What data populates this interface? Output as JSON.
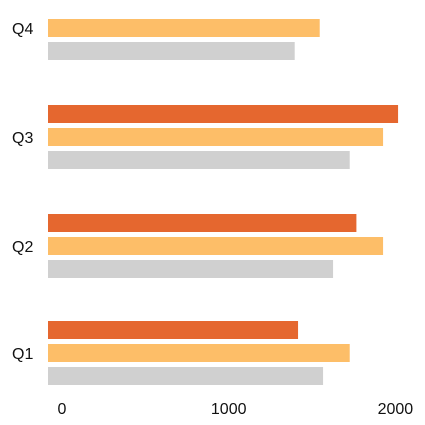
{
  "chart_data": {
    "type": "bar",
    "orientation": "horizontal",
    "title": "",
    "xlabel": "",
    "ylabel": "",
    "categories": [
      "Q1",
      "Q2",
      "Q3",
      "Q4"
    ],
    "series": [
      {
        "values": [
          1500,
          1850,
          2100,
          null
        ],
        "color": "#E5672F"
      },
      {
        "values": [
          1810,
          2010,
          2010,
          1630
        ],
        "color": "#FDBE68"
      },
      {
        "values": [
          1650,
          1710,
          1810,
          1480
        ],
        "color": "#D0D0D0"
      }
    ],
    "xlim": [
      0,
      2200
    ],
    "xticks": [
      0,
      1000,
      2000
    ],
    "xtick_labels": [
      "0",
      "1000",
      "2000"
    ],
    "grid": false,
    "legend": "none"
  }
}
